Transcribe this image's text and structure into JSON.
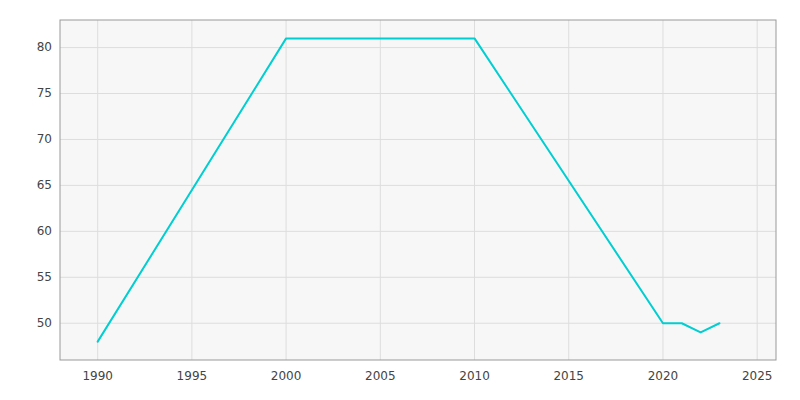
{
  "chart_data": {
    "type": "line",
    "x": [
      1990,
      2000,
      2010,
      2020,
      2021,
      2022,
      2023
    ],
    "values": [
      48,
      81,
      81,
      50,
      50,
      49,
      50
    ],
    "color": "#00CED1",
    "xlim": [
      1988,
      2026
    ],
    "ylim": [
      46,
      83
    ],
    "xticks": [
      1990,
      1995,
      2000,
      2005,
      2010,
      2015,
      2020,
      2025
    ],
    "yticks": [
      50,
      55,
      60,
      65,
      70,
      75,
      80
    ],
    "grid": true
  }
}
